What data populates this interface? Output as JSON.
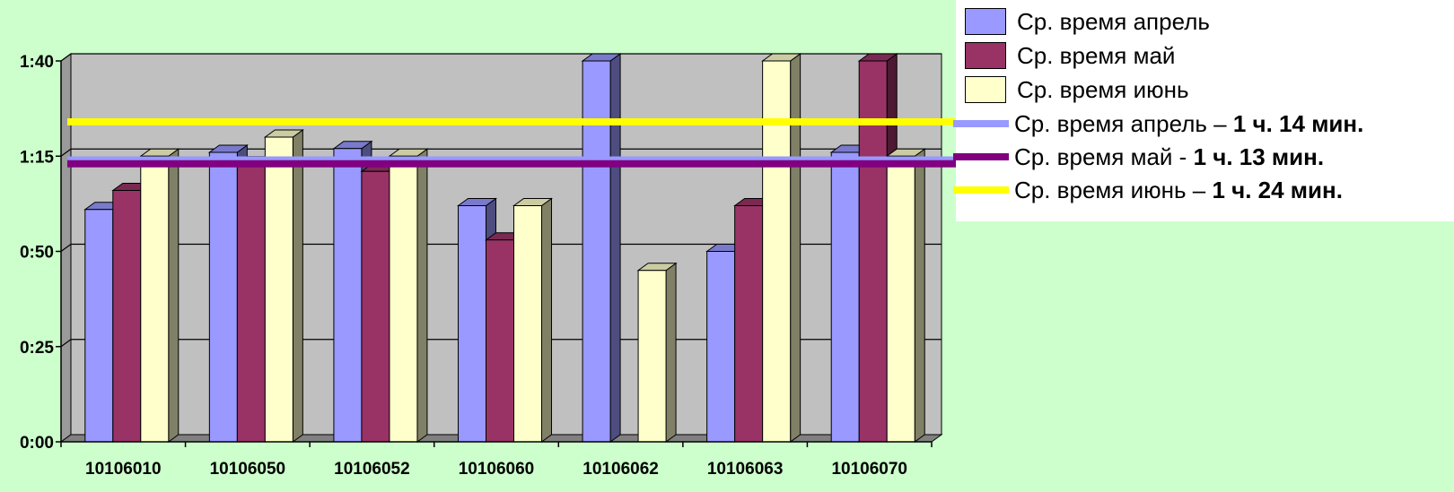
{
  "chart_data": {
    "type": "bar",
    "categories": [
      "10106010",
      "10106050",
      "10106052",
      "10106060",
      "10106062",
      "10106063",
      "10106070"
    ],
    "series": [
      {
        "name": "Ср. время апрель",
        "color": "#9999ff",
        "values": [
          61,
          76,
          77,
          62,
          100,
          50,
          76
        ]
      },
      {
        "name": "Ср. время май",
        "color": "#993366",
        "values": [
          66,
          73,
          71,
          53,
          0,
          62,
          100
        ]
      },
      {
        "name": "Ср. время июнь",
        "color": "#ffffcc",
        "values": [
          75,
          80,
          75,
          62,
          45,
          100,
          75
        ]
      }
    ],
    "reference_lines": [
      {
        "label": "Ср. время апрель – ",
        "value_text": "1 ч. 14 мин.",
        "value": 74,
        "color": "#9999ff"
      },
      {
        "label": "Ср. время май - ",
        "value_text": "1 ч. 13 мин.",
        "value": 73,
        "color": "#800080"
      },
      {
        "label": "Ср. время июнь – ",
        "value_text": "1 ч. 24 мин.",
        "value": 84,
        "color": "#ffff00"
      }
    ],
    "y_ticks": [
      "0:00",
      "0:25",
      "0:50",
      "1:15",
      "1:40"
    ],
    "y_tick_values": [
      0,
      25,
      50,
      75,
      100
    ],
    "ylim": [
      0,
      100
    ],
    "title": "",
    "xlabel": "",
    "ylabel": "",
    "grid": true,
    "legend_position": "top-right"
  }
}
